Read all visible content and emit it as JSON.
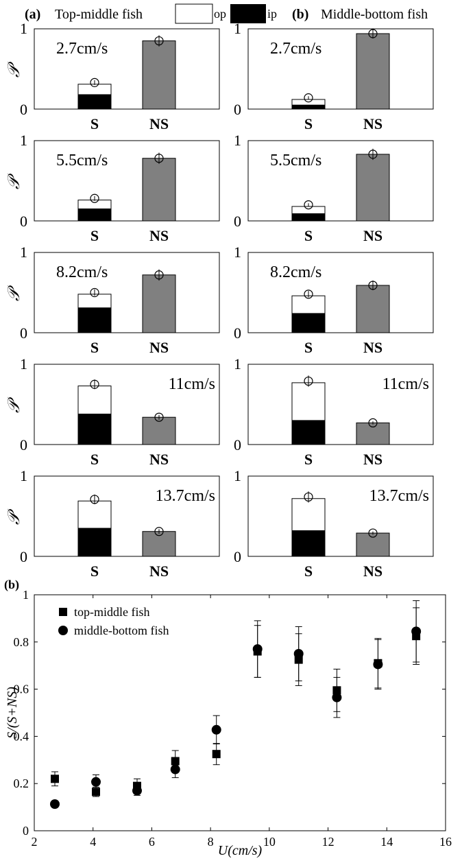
{
  "header": {
    "left_tag": "(a)",
    "left_title": "Top-middle fish",
    "right_tag": "(b)",
    "right_title": "Middle-bottom fish",
    "legend": [
      {
        "label": "op",
        "color": "#ffffff"
      },
      {
        "label": "ip",
        "color": "#000000"
      }
    ]
  },
  "colors": {
    "ns_bar": "#808080",
    "ip_bar": "#000000",
    "op_bar": "#ffffff",
    "axis": "#000000"
  },
  "chart_data": [
    {
      "type": "bar",
      "group": "Top-middle fish",
      "ylabel": "𝒫",
      "ylim": [
        0,
        1
      ],
      "yticks": [
        "0",
        "1"
      ],
      "categories": [
        "S",
        "NS"
      ],
      "panels": [
        {
          "speed": "2.7cm/s",
          "label_pos": "left",
          "S_ip": 0.18,
          "S_total": 0.31,
          "S_err": 0.03,
          "NS": 0.85,
          "NS_err": 0.07
        },
        {
          "speed": "5.5cm/s",
          "label_pos": "left",
          "S_ip": 0.15,
          "S_total": 0.26,
          "S_err": 0.03,
          "NS": 0.78,
          "NS_err": 0.07
        },
        {
          "speed": "8.2cm/s",
          "label_pos": "left",
          "S_ip": 0.31,
          "S_total": 0.48,
          "S_err": 0.04,
          "NS": 0.72,
          "NS_err": 0.07
        },
        {
          "speed": "11cm/s",
          "label_pos": "right",
          "S_ip": 0.38,
          "S_total": 0.73,
          "S_err": 0.06,
          "NS": 0.34,
          "NS_err": 0.03
        },
        {
          "speed": "13.7cm/s",
          "label_pos": "right",
          "S_ip": 0.35,
          "S_total": 0.69,
          "S_err": 0.06,
          "NS": 0.31,
          "NS_err": 0.03
        }
      ]
    },
    {
      "type": "bar",
      "group": "Middle-bottom fish",
      "ylim": [
        0,
        1
      ],
      "yticks": [
        "0",
        "1"
      ],
      "categories": [
        "S",
        "NS"
      ],
      "panels": [
        {
          "speed": "2.7cm/s",
          "label_pos": "left",
          "S_ip": 0.05,
          "S_total": 0.12,
          "S_err": 0.02,
          "NS": 0.94,
          "NS_err": 0.06
        },
        {
          "speed": "5.5cm/s",
          "label_pos": "left",
          "S_ip": 0.09,
          "S_total": 0.18,
          "S_err": 0.02,
          "NS": 0.83,
          "NS_err": 0.07
        },
        {
          "speed": "8.2cm/s",
          "label_pos": "left",
          "S_ip": 0.24,
          "S_total": 0.46,
          "S_err": 0.04,
          "NS": 0.59,
          "NS_err": 0.06
        },
        {
          "speed": "11cm/s",
          "label_pos": "right",
          "S_ip": 0.3,
          "S_total": 0.77,
          "S_err": 0.07,
          "NS": 0.27,
          "NS_err": 0.02
        },
        {
          "speed": "13.7cm/s",
          "label_pos": "right",
          "S_ip": 0.32,
          "S_total": 0.72,
          "S_err": 0.07,
          "NS": 0.29,
          "NS_err": 0.02
        }
      ]
    },
    {
      "type": "scatter",
      "panel_tag": "(b)",
      "xlabel": "U(cm/s)",
      "ylabel": "S/(S+NS)",
      "xlim": [
        2,
        16
      ],
      "ylim": [
        0,
        1
      ],
      "xticks": [
        2,
        4,
        6,
        8,
        10,
        12,
        14,
        16
      ],
      "yticks": [
        0,
        0.2,
        0.4,
        0.6,
        0.8,
        1
      ],
      "ytick_labels": [
        "0",
        "0.2",
        "0.4",
        "0.6",
        "0.8",
        "1"
      ],
      "legend_pos": "top-left",
      "series": [
        {
          "name": "top-middle fish",
          "marker": "square",
          "x": [
            2.7,
            4.1,
            5.5,
            6.8,
            8.2,
            9.6,
            11.0,
            12.3,
            13.7,
            15.0
          ],
          "y": [
            0.22,
            0.165,
            0.19,
            0.295,
            0.325,
            0.76,
            0.725,
            0.595,
            0.71,
            0.825
          ],
          "err": [
            0.03,
            0.02,
            0.03,
            0.045,
            0.045,
            0.11,
            0.11,
            0.09,
            0.105,
            0.12
          ]
        },
        {
          "name": "middle-bottom fish",
          "marker": "circle",
          "x": [
            2.7,
            4.1,
            5.5,
            6.8,
            8.2,
            9.6,
            11.0,
            12.3,
            13.7,
            15.0
          ],
          "y": [
            0.113,
            0.207,
            0.17,
            0.26,
            0.428,
            0.77,
            0.75,
            0.565,
            0.705,
            0.845
          ],
          "err": [
            0.01,
            0.03,
            0.02,
            0.035,
            0.06,
            0.12,
            0.115,
            0.085,
            0.105,
            0.13
          ]
        }
      ]
    }
  ]
}
